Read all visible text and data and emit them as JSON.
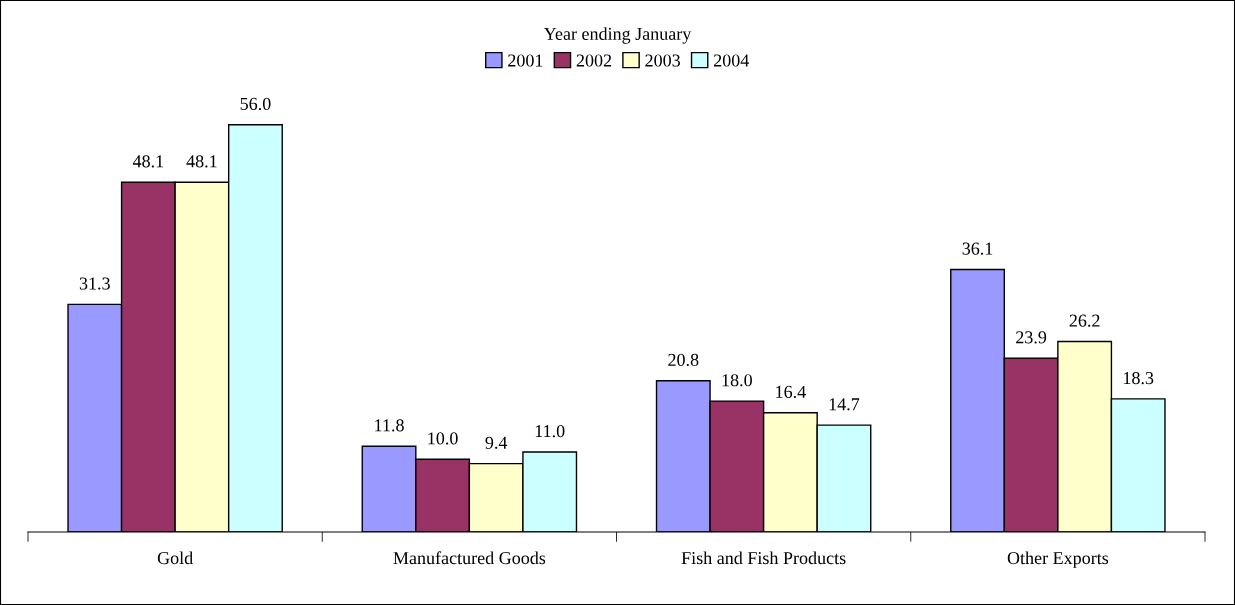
{
  "chart_data": {
    "type": "bar",
    "categories": [
      "Gold",
      "Manufactured Goods",
      "Fish and Fish Products",
      "Other Exports"
    ],
    "legend_title": "Year ending January",
    "series": [
      {
        "name": "2001",
        "color": "#9999ff",
        "values": [
          31.3,
          11.8,
          20.8,
          36.1
        ],
        "value_labels": [
          "31.3",
          "11.8",
          "20.8",
          "36.1"
        ]
      },
      {
        "name": "2002",
        "color": "#993366",
        "values": [
          48.1,
          10.0,
          18.0,
          23.9
        ],
        "value_labels": [
          "48.1",
          "10.0",
          "18.0",
          "23.9"
        ]
      },
      {
        "name": "2003",
        "color": "#ffffcc",
        "values": [
          48.1,
          9.4,
          16.4,
          26.2
        ],
        "value_labels": [
          "48.1",
          "9.4",
          "16.4",
          "26.2"
        ]
      },
      {
        "name": "2004",
        "color": "#ccffff",
        "values": [
          56.0,
          11.0,
          14.7,
          18.3
        ],
        "value_labels": [
          "56.0",
          "11.0",
          "14.7",
          "18.3"
        ]
      }
    ],
    "legend": "top",
    "grid": false
  }
}
